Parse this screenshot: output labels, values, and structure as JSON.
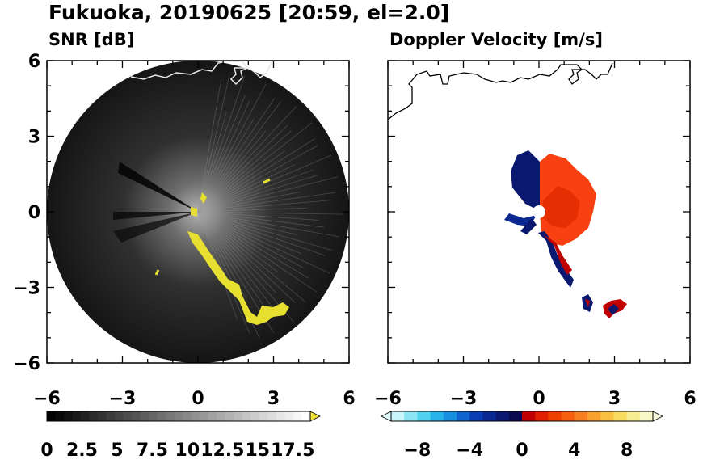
{
  "figure": {
    "title": "Fukuoka, 20190625 [20:59, el=2.0]"
  },
  "chart_data": [
    {
      "type": "heatmap",
      "title": "SNR [dB]",
      "xlabel": "",
      "ylabel": "",
      "xlim": [
        -6,
        6
      ],
      "ylim": [
        -6,
        6
      ],
      "xticks": [
        -6,
        -3,
        0,
        3,
        6
      ],
      "yticks": [
        -6,
        -3,
        0,
        3,
        6
      ],
      "xtick_labels": [
        "−6",
        "−3",
        "0",
        "3",
        "6"
      ],
      "ytick_labels": [
        "6",
        "3",
        "0",
        "−3",
        "−6"
      ],
      "grid": false,
      "colorbar": {
        "range": [
          0,
          18.75
        ],
        "levels": 31,
        "extend": "max",
        "extend_color": "#f0e040",
        "ticks": [
          0,
          2.5,
          5,
          7.5,
          10,
          12.5,
          15,
          17.5
        ],
        "tick_labels": [
          "0",
          "2.5",
          "5",
          "7.5",
          "10",
          "12.5",
          "15",
          "17.5"
        ],
        "colormap": "gray"
      },
      "radar_range_km": 6,
      "high_snr_track": [
        [
          -0.2,
          -0.7
        ],
        [
          0.3,
          -1.4
        ],
        [
          0.9,
          -2.3
        ],
        [
          1.5,
          -2.9
        ],
        [
          1.8,
          -3.2
        ],
        [
          2.0,
          -3.5
        ],
        [
          2.5,
          -3.9
        ],
        [
          3.0,
          -3.8
        ],
        [
          3.4,
          -3.6
        ]
      ]
    },
    {
      "type": "heatmap",
      "title": "Doppler Velocity [m/s]",
      "xlabel": "",
      "ylabel": "",
      "xlim": [
        -6,
        6
      ],
      "ylim": [
        -6,
        6
      ],
      "xticks": [
        -6,
        -3,
        0,
        3,
        6
      ],
      "yticks": [
        -6,
        -3,
        0,
        3,
        6
      ],
      "xtick_labels": [
        "−6",
        "−3",
        "0",
        "3",
        "6"
      ],
      "ytick_labels": [
        "6",
        "3",
        "0",
        "−3",
        "−6"
      ],
      "grid": false,
      "colorbar": {
        "range": [
          -10,
          10
        ],
        "extend": "both",
        "ticks": [
          -8,
          -4,
          0,
          4,
          8
        ],
        "tick_labels": [
          "−8",
          "−4",
          "0",
          "4",
          "8"
        ],
        "colors": [
          "#c8f4fa",
          "#8ce6f4",
          "#50d2ee",
          "#28b4e8",
          "#1890e0",
          "#1064d0",
          "#0a3cb4",
          "#0a2890",
          "#0a1870",
          "#0a0a50",
          "#c00000",
          "#e02000",
          "#f04000",
          "#f86010",
          "#f88020",
          "#f8a030",
          "#f8c040",
          "#f8dc60",
          "#f8ec90",
          "#f8f8c8"
        ],
        "extend_low_color": "#e0fafc",
        "extend_high_color": "#fcfce0"
      }
    }
  ]
}
